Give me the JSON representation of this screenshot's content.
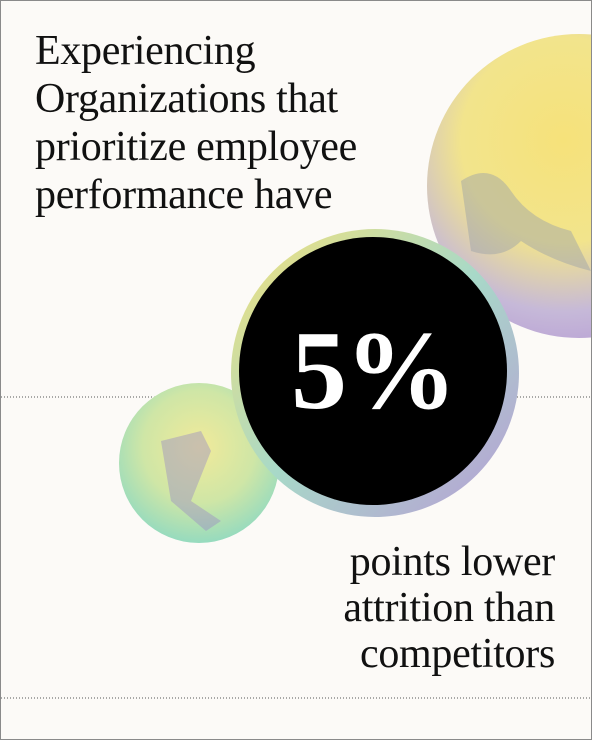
{
  "headline": "Experiencing Organizations that prioritize employee performance have",
  "stat": "5%",
  "caption": "points lower attrition than competitors"
}
